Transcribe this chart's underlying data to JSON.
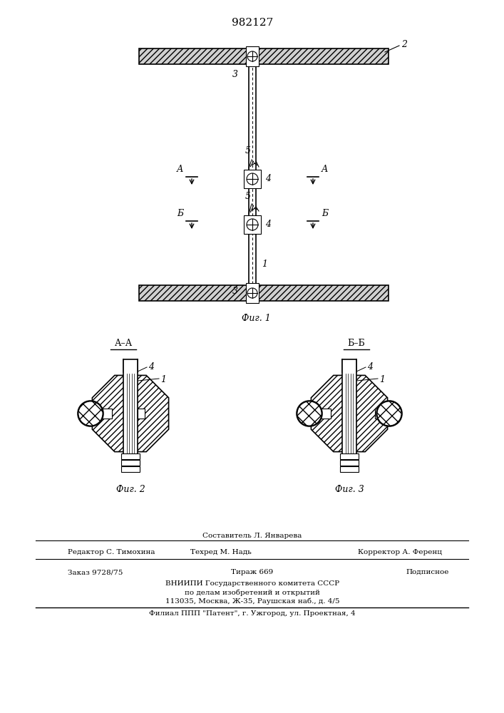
{
  "title": "982127",
  "bg_color": "#ffffff",
  "fig_width": 7.07,
  "fig_height": 10.0,
  "footer": {
    "line1": "Составитель Л. Январева",
    "line2a": "Редактор С. Тимохина",
    "line2b": "Техред М. Надь",
    "line2c": "Корректор А. Ференц",
    "line3a": "Заказ 9728/75",
    "line3b": "Тираж 669",
    "line3c": "Подписное",
    "line4": "ВНИИПИ Государственного комитета СССР",
    "line5": "по делам изобретений и открытий",
    "line6": "113035, Москва, Ж-35, Раушская наб., д. 4/5",
    "line7": "Филиал ППП \"Патент\", г. Ужгород, ул. Проектная, 4"
  }
}
